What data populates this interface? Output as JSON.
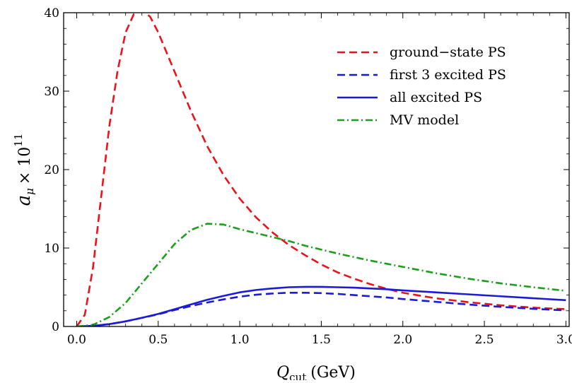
{
  "chart_data": {
    "type": "line",
    "xlabel_main": "Q",
    "xlabel_sub": "cut",
    "xlabel_unit": "(GeV)",
    "ylabel_main": "a",
    "ylabel_sub": "μ",
    "ylabel_times": "× 10",
    "ylabel_exp": "11",
    "xlim": [
      -0.08,
      3.02
    ],
    "ylim": [
      0,
      40
    ],
    "x_ticks": [
      0.0,
      0.5,
      1.0,
      1.5,
      2.0,
      2.5,
      3.0
    ],
    "x_tick_labels": [
      "0.0",
      "0.5",
      "1.0",
      "1.5",
      "2.0",
      "2.5",
      "3.0"
    ],
    "y_ticks": [
      0,
      10,
      20,
      30,
      40
    ],
    "y_tick_labels": [
      "0",
      "10",
      "20",
      "30",
      "40"
    ],
    "grid": false,
    "legend_position": "top-right",
    "series": [
      {
        "name": "ground−state PS",
        "color": "#e8141b",
        "style": "dashed",
        "points": [
          [
            0.0,
            0.0
          ],
          [
            0.05,
            1.5
          ],
          [
            0.1,
            7.5
          ],
          [
            0.15,
            16.5
          ],
          [
            0.2,
            25.5
          ],
          [
            0.25,
            32.5
          ],
          [
            0.3,
            37.5
          ],
          [
            0.35,
            39.8
          ],
          [
            0.4,
            40.3
          ],
          [
            0.45,
            39.5
          ],
          [
            0.5,
            37.5
          ],
          [
            0.6,
            32.5
          ],
          [
            0.7,
            27.5
          ],
          [
            0.8,
            23.0
          ],
          [
            0.9,
            19.3
          ],
          [
            1.0,
            16.3
          ],
          [
            1.1,
            13.9
          ],
          [
            1.2,
            12.0
          ],
          [
            1.3,
            10.4
          ],
          [
            1.4,
            9.1
          ],
          [
            1.5,
            7.9
          ],
          [
            1.6,
            6.9
          ],
          [
            1.7,
            6.1
          ],
          [
            1.8,
            5.4
          ],
          [
            1.9,
            4.8
          ],
          [
            2.0,
            4.3
          ],
          [
            2.2,
            3.6
          ],
          [
            2.4,
            3.1
          ],
          [
            2.6,
            2.7
          ],
          [
            2.8,
            2.4
          ],
          [
            3.0,
            2.2
          ]
        ]
      },
      {
        "name": "first 3 excited PS",
        "color": "#1a1adb",
        "style": "dashed",
        "points": [
          [
            0.0,
            0.0
          ],
          [
            0.1,
            0.07
          ],
          [
            0.2,
            0.3
          ],
          [
            0.3,
            0.65
          ],
          [
            0.4,
            1.1
          ],
          [
            0.5,
            1.55
          ],
          [
            0.6,
            2.1
          ],
          [
            0.7,
            2.6
          ],
          [
            0.8,
            3.05
          ],
          [
            0.9,
            3.45
          ],
          [
            1.0,
            3.8
          ],
          [
            1.1,
            4.05
          ],
          [
            1.2,
            4.2
          ],
          [
            1.3,
            4.3
          ],
          [
            1.4,
            4.3
          ],
          [
            1.5,
            4.25
          ],
          [
            1.6,
            4.15
          ],
          [
            1.7,
            4.0
          ],
          [
            1.8,
            3.85
          ],
          [
            1.9,
            3.7
          ],
          [
            2.0,
            3.5
          ],
          [
            2.2,
            3.15
          ],
          [
            2.4,
            2.8
          ],
          [
            2.6,
            2.5
          ],
          [
            2.8,
            2.25
          ],
          [
            3.0,
            2.05
          ]
        ]
      },
      {
        "name": "all excited PS",
        "color": "#1a1adb",
        "style": "solid",
        "points": [
          [
            0.0,
            0.0
          ],
          [
            0.1,
            0.07
          ],
          [
            0.2,
            0.3
          ],
          [
            0.3,
            0.65
          ],
          [
            0.4,
            1.1
          ],
          [
            0.5,
            1.6
          ],
          [
            0.6,
            2.2
          ],
          [
            0.7,
            2.8
          ],
          [
            0.8,
            3.4
          ],
          [
            0.9,
            3.9
          ],
          [
            1.0,
            4.35
          ],
          [
            1.1,
            4.65
          ],
          [
            1.2,
            4.85
          ],
          [
            1.3,
            5.0
          ],
          [
            1.4,
            5.05
          ],
          [
            1.5,
            5.05
          ],
          [
            1.6,
            5.0
          ],
          [
            1.7,
            4.95
          ],
          [
            1.8,
            4.85
          ],
          [
            1.9,
            4.75
          ],
          [
            2.0,
            4.6
          ],
          [
            2.2,
            4.35
          ],
          [
            2.4,
            4.1
          ],
          [
            2.6,
            3.85
          ],
          [
            2.8,
            3.6
          ],
          [
            3.0,
            3.35
          ]
        ]
      },
      {
        "name": "MV model",
        "color": "#1e9e1e",
        "style": "dashdot",
        "points": [
          [
            0.0,
            0.0
          ],
          [
            0.1,
            0.2
          ],
          [
            0.2,
            1.2
          ],
          [
            0.3,
            3.0
          ],
          [
            0.4,
            5.5
          ],
          [
            0.5,
            8.0
          ],
          [
            0.6,
            10.5
          ],
          [
            0.7,
            12.3
          ],
          [
            0.8,
            13.1
          ],
          [
            0.9,
            13.0
          ],
          [
            1.0,
            12.4
          ],
          [
            1.1,
            11.9
          ],
          [
            1.2,
            11.4
          ],
          [
            1.3,
            10.9
          ],
          [
            1.4,
            10.3
          ],
          [
            1.5,
            9.8
          ],
          [
            1.6,
            9.3
          ],
          [
            1.7,
            8.85
          ],
          [
            1.8,
            8.4
          ],
          [
            1.9,
            8.0
          ],
          [
            2.0,
            7.6
          ],
          [
            2.2,
            6.8
          ],
          [
            2.4,
            6.1
          ],
          [
            2.6,
            5.5
          ],
          [
            2.8,
            5.0
          ],
          [
            3.0,
            4.55
          ]
        ]
      }
    ]
  }
}
